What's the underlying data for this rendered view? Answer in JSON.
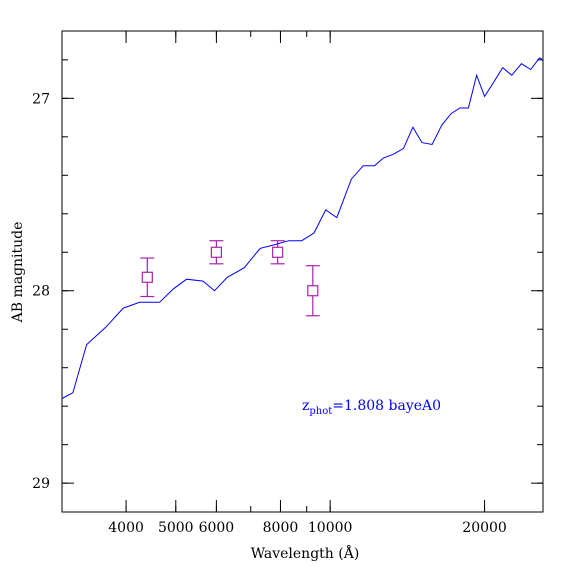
{
  "chart_data": {
    "type": "line",
    "xlabel": "Wavelength (Å)",
    "ylabel": "AB magnitude",
    "x_scale": "log",
    "xlim": [
      3000,
      26000
    ],
    "ylim": [
      29.15,
      26.65
    ],
    "x_tick_labels": [
      "4000",
      "5000",
      "6000",
      "8000",
      "10000",
      "20000"
    ],
    "x_tick_values": [
      4000,
      5000,
      6000,
      8000,
      10000,
      20000
    ],
    "y_tick_labels": [
      "27",
      "28",
      "29"
    ],
    "y_tick_values": [
      27,
      28,
      29
    ],
    "annotation": {
      "text_main": "z",
      "text_sub": "phot",
      "text_rest": "=1.808 bayeA0",
      "color": "#0000ff"
    },
    "series": [
      {
        "kind": "line",
        "color": "#0000ff",
        "x": [
          3000,
          3150,
          3350,
          3650,
          3950,
          4250,
          4650,
          4950,
          5250,
          5650,
          5950,
          6300,
          6800,
          7300,
          7800,
          8300,
          8800,
          9300,
          9800,
          10300,
          11000,
          11600,
          12200,
          12700,
          13300,
          13900,
          14500,
          15100,
          15800,
          16500,
          17200,
          17900,
          18600,
          19300,
          20000,
          20800,
          21700,
          22600,
          23600,
          24600,
          25600,
          26000
        ],
        "y": [
          28.56,
          28.53,
          28.28,
          28.19,
          28.09,
          28.06,
          28.06,
          27.99,
          27.94,
          27.95,
          28.0,
          27.93,
          27.88,
          27.78,
          27.76,
          27.74,
          27.74,
          27.7,
          27.58,
          27.62,
          27.42,
          27.35,
          27.35,
          27.31,
          27.29,
          27.26,
          27.15,
          27.23,
          27.24,
          27.14,
          27.08,
          27.05,
          27.05,
          26.88,
          26.99,
          26.92,
          26.84,
          26.88,
          26.82,
          26.85,
          26.79,
          26.8
        ]
      },
      {
        "kind": "errorbar",
        "color": "#aa22aa",
        "x": [
          4400,
          6000,
          7900,
          9250
        ],
        "y": [
          27.93,
          27.8,
          27.8,
          28.0
        ],
        "yerr": [
          0.1,
          0.06,
          0.06,
          0.13
        ]
      }
    ]
  }
}
